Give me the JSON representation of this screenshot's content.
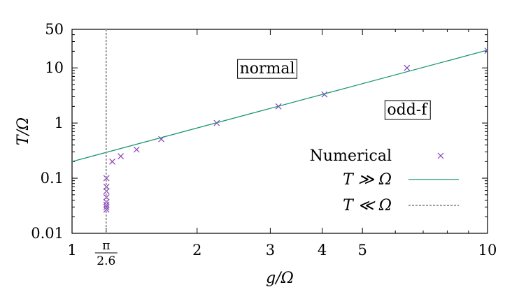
{
  "chart_data": {
    "type": "scatter",
    "xlabel": "g/Ω",
    "ylabel": "T/Ω",
    "xscale": "log",
    "yscale": "log",
    "xlim": [
      1,
      10
    ],
    "ylim": [
      0.01,
      50
    ],
    "xticks": [
      {
        "value": 1,
        "label": "1"
      },
      {
        "value": 2,
        "label": "2"
      },
      {
        "value": 3,
        "label": "3"
      },
      {
        "value": 4,
        "label": "4"
      },
      {
        "value": 5,
        "label": "5"
      },
      {
        "value": 10,
        "label": "10"
      }
    ],
    "special_xtick": {
      "value": 1.2083,
      "numerator": "π",
      "denominator": "2.6"
    },
    "yticks": [
      {
        "value": 0.01,
        "label": "0.01"
      },
      {
        "value": 0.1,
        "label": "0.1"
      },
      {
        "value": 1,
        "label": "1"
      },
      {
        "value": 10,
        "label": "10"
      },
      {
        "value": 50,
        "label": "50"
      }
    ],
    "grid": false,
    "legend_position": "bottom-right",
    "series": [
      {
        "name": "Numerical",
        "style": "markers-x",
        "color": "#8a3fbd",
        "points": [
          [
            1.21,
            0.027
          ],
          [
            1.21,
            0.03
          ],
          [
            1.21,
            0.033
          ],
          [
            1.21,
            0.037
          ],
          [
            1.21,
            0.045
          ],
          [
            1.21,
            0.058
          ],
          [
            1.21,
            0.07
          ],
          [
            1.21,
            0.1
          ],
          [
            1.25,
            0.2
          ],
          [
            1.31,
            0.25
          ],
          [
            1.43,
            0.33
          ],
          [
            1.64,
            0.51
          ],
          [
            2.23,
            1.0
          ],
          [
            3.14,
            2.0
          ],
          [
            4.05,
            3.3
          ],
          [
            6.4,
            10.0
          ],
          [
            10.0,
            20.5
          ]
        ]
      },
      {
        "name": "T ≫ Ω",
        "style": "line",
        "color": "#1a9676",
        "points": [
          [
            1.0,
            0.2
          ],
          [
            10.0,
            21.0
          ]
        ]
      },
      {
        "name": "T ≪ Ω",
        "style": "dashed-vertical",
        "color": "#9e9e9e",
        "x": 1.2083
      }
    ],
    "annotations": [
      {
        "text": "normal",
        "x": 2.95,
        "y": 10.0
      },
      {
        "text": "odd-f",
        "x": 6.4,
        "y": 1.8
      }
    ]
  }
}
